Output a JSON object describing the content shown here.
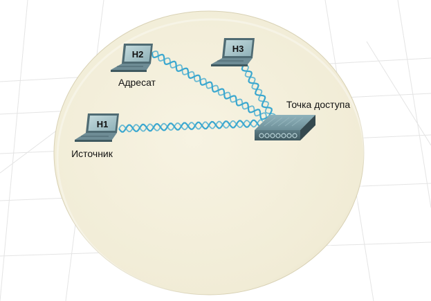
{
  "hosts": [
    {
      "id": "h1",
      "screen_label": "H1",
      "caption": "Источник"
    },
    {
      "id": "h2",
      "screen_label": "H2",
      "caption": "Адресат"
    },
    {
      "id": "h3",
      "screen_label": "H3",
      "caption": ""
    }
  ],
  "access_point": {
    "caption": "Точка доступа"
  },
  "links": [
    {
      "from": "h1",
      "to": "access_point"
    },
    {
      "from": "h2",
      "to": "access_point"
    },
    {
      "from": "h3",
      "to": "access_point"
    }
  ],
  "colors": {
    "coverage_area": "#f4f0dc",
    "wireless_signal": "#3aa7cf",
    "device_body": "#5f7d86",
    "screen": "#a7c6cc",
    "grid": "#e4e4e4"
  }
}
